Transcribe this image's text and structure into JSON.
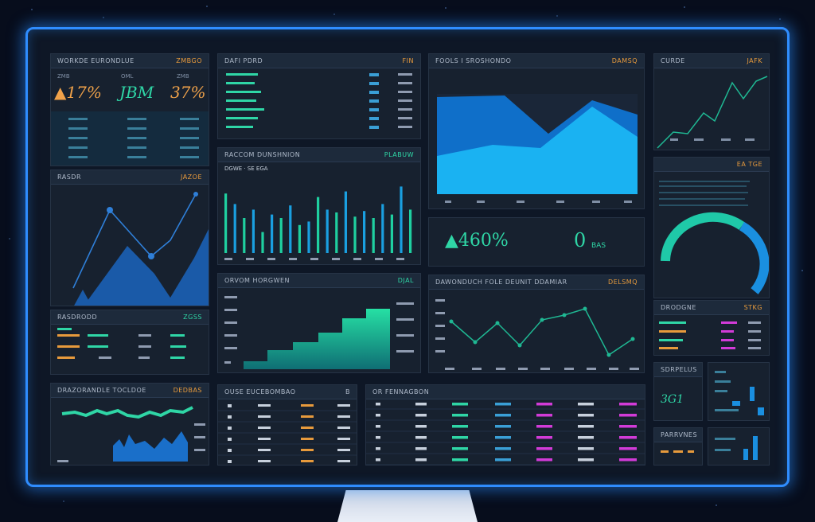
{
  "kpi_top": {
    "title": "WORKDE EURONDLUE",
    "tag": "ZMBGO",
    "values": [
      "▲17%",
      "JBM",
      "37%"
    ],
    "labels": [
      "ZMB",
      "OML",
      "ZMB"
    ]
  },
  "fin_list": {
    "title": "DAFI PDRD",
    "tag": "FIN"
  },
  "area_panel": {
    "title": "FOOLS I SROSHONDO",
    "tag": "DAMSQ"
  },
  "mini_line": {
    "title": "CURDE",
    "tag": "JAFK"
  },
  "line_left": {
    "title": "RASDR",
    "tag": "JAZOE"
  },
  "bars_panel": {
    "title": "RACCOM DUNSHNION",
    "tag": "PLABUW",
    "legend": "DGWE  ·  SE  EGA"
  },
  "big_kpi": {
    "value_left": "▲460%",
    "value_right": "0",
    "sub_right": "BAS"
  },
  "gauge_panel": {
    "title": "",
    "tag": "EA TGE"
  },
  "legend_panel": {
    "title": "RASDRODD",
    "tag": "ZGSS"
  },
  "step_panel": {
    "title": "ORVOM HORGWEN",
    "tag": "DJAL"
  },
  "wave_line": {
    "title": "DAWONDUCH FOLE DEUNIT DDAMIAR",
    "tag": "DELSMQ"
  },
  "status_panel": {
    "title": "DRODGNE",
    "tag": "STKG"
  },
  "cap_panel": {
    "title": "DRAZORANDLE TOCLDOE",
    "tag": "DEDBAS"
  },
  "table_a": {
    "title": "OUSE EUCEBOMBAO",
    "tag": "B"
  },
  "table_b": {
    "title": "OR FENNAGBON",
    "tag": ""
  },
  "small_a": {
    "title": "SDRPELUS",
    "value": "3G1"
  },
  "small_b": {
    "title": "PARRVNES"
  },
  "colors": {
    "accent": "#2fa8ff",
    "green": "#25d0a0",
    "orange": "#e79a3c",
    "magenta": "#d23bd8",
    "frame": "#2f8dff"
  }
}
